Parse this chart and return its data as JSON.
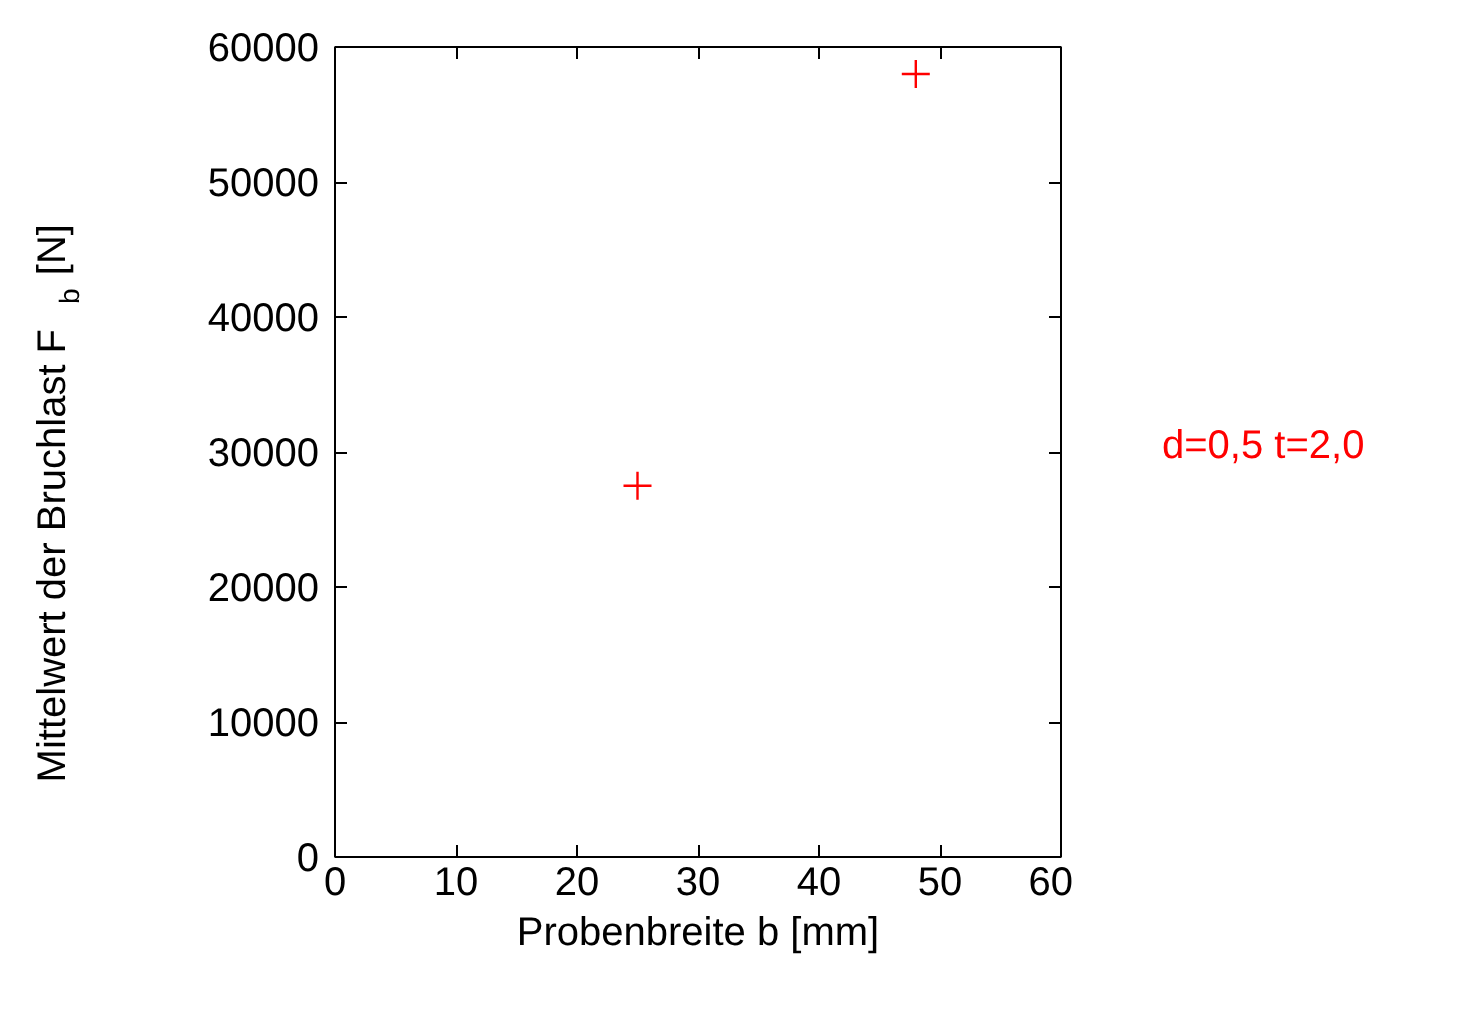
{
  "chart_data": {
    "type": "scatter",
    "xlabel": "Probenbreite b [mm]",
    "ylabel": "Mittelwert der Bruchlast F$_{b}$ [N]",
    "x": [
      25,
      48
    ],
    "series": [
      {
        "name": "d=0,5 t=2,0",
        "color": "#ff0000",
        "values": [
          27500,
          58000
        ]
      }
    ],
    "xlim": [
      0,
      60
    ],
    "ylim": [
      0,
      60000
    ],
    "xticks": [
      0,
      10,
      20,
      30,
      40,
      50,
      60
    ],
    "yticks": [
      0,
      10000,
      20000,
      30000,
      40000,
      50000,
      60000
    ],
    "marker": "cross",
    "grid": false,
    "legend": "top right"
  }
}
